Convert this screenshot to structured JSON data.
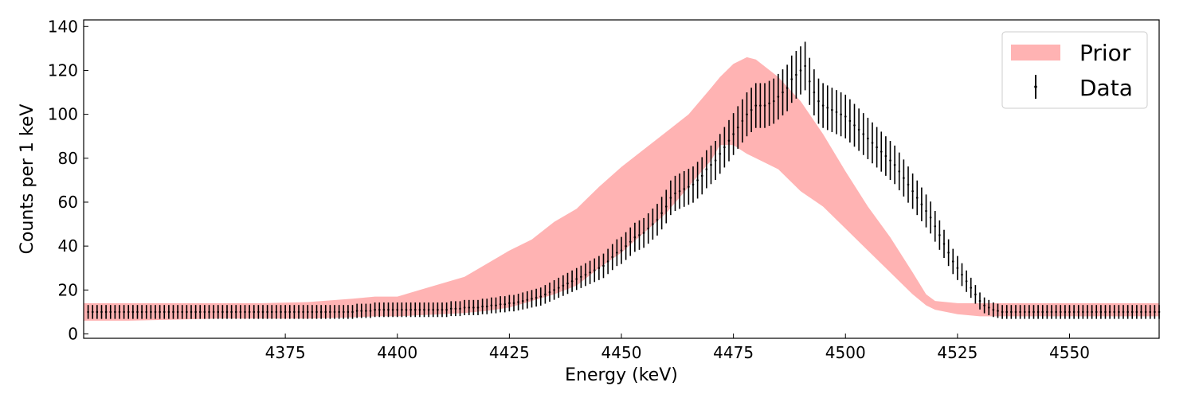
{
  "chart_data": {
    "type": "line",
    "title": "",
    "xlabel": "Energy (keV)",
    "ylabel": "Counts per 1 keV",
    "xlim": [
      4330,
      4570
    ],
    "ylim": [
      -2,
      143
    ],
    "xticks": [
      4375,
      4400,
      4425,
      4450,
      4475,
      4500,
      4525,
      4550
    ],
    "yticks": [
      0,
      20,
      40,
      60,
      80,
      100,
      120,
      140
    ],
    "grid": false,
    "legend": {
      "placement": "top-right",
      "entries": [
        {
          "label": "Prior",
          "kind": "band",
          "color": "#ffb3b3"
        },
        {
          "label": "Data",
          "kind": "errorbar",
          "color": "#000000"
        }
      ]
    },
    "series": [
      {
        "name": "Prior",
        "kind": "band",
        "color": "#ffb3b3",
        "x": [
          4330,
          4340,
          4350,
          4360,
          4370,
          4380,
          4390,
          4395,
          4400,
          4405,
          4410,
          4415,
          4420,
          4425,
          4430,
          4435,
          4440,
          4445,
          4450,
          4455,
          4460,
          4465,
          4470,
          4472,
          4475,
          4478,
          4480,
          4485,
          4490,
          4495,
          4500,
          4505,
          4510,
          4515,
          4518,
          4520,
          4525,
          4530,
          4540,
          4550,
          4560,
          4570
        ],
        "upper": [
          14,
          14,
          14,
          14,
          14,
          14.5,
          16,
          17,
          17,
          20,
          23,
          26,
          32,
          38,
          43,
          51,
          57,
          67,
          76,
          84,
          92,
          100,
          112,
          117,
          123,
          126,
          125,
          117,
          106,
          91,
          74,
          58,
          44,
          28,
          18,
          15,
          14,
          14,
          14,
          14,
          14,
          14
        ],
        "lower": [
          6,
          6,
          6.5,
          7,
          7,
          7,
          7.5,
          8,
          8,
          8.5,
          9,
          9.5,
          10.5,
          12,
          15,
          18,
          22,
          30,
          37,
          46,
          55,
          67,
          79,
          86,
          86,
          82,
          80,
          75,
          65,
          58,
          48,
          38,
          28,
          18,
          13,
          11,
          9,
          8,
          8,
          8,
          8,
          8
        ]
      },
      {
        "name": "Data",
        "kind": "errorbar",
        "color": "#000000",
        "x_start": 4331,
        "x_step": 1,
        "y": [
          10,
          10,
          10,
          10,
          10,
          10,
          10,
          10,
          10,
          10,
          10,
          10,
          10,
          10,
          10,
          10,
          10,
          10,
          10,
          10,
          10,
          10,
          10,
          10,
          10,
          10,
          10,
          10,
          10,
          10,
          10,
          10,
          10,
          10,
          10,
          10,
          10,
          10,
          10,
          10,
          10,
          10,
          10,
          10,
          10,
          10,
          10,
          10,
          10,
          10,
          10,
          10,
          10,
          10,
          10,
          10,
          10,
          10,
          10,
          10,
          10.5,
          10.5,
          10.5,
          10.5,
          11,
          11,
          11,
          11,
          11,
          11,
          11,
          11,
          11,
          11,
          11,
          11,
          11,
          11,
          11,
          11,
          11,
          11.5,
          11.5,
          11.5,
          12,
          12,
          12,
          12,
          12.5,
          12.5,
          13,
          13,
          13.5,
          13.5,
          14,
          14,
          14.5,
          15,
          15.5,
          16,
          16.5,
          17,
          18,
          19,
          20,
          21,
          22,
          23,
          24,
          25,
          26,
          27,
          28,
          29,
          30,
          31,
          33,
          35,
          37,
          38,
          40,
          42,
          44,
          45,
          46,
          48,
          50,
          52,
          55,
          58,
          62,
          64,
          65,
          66,
          67,
          68,
          70,
          72,
          75,
          77,
          79,
          82,
          85,
          88,
          91,
          94,
          97,
          100,
          102,
          104,
          104,
          104,
          105,
          106,
          108,
          110,
          112,
          116,
          118,
          120,
          122,
          115,
          110,
          106,
          104,
          103,
          102,
          101,
          100,
          99,
          97,
          95,
          93,
          91,
          89,
          87,
          85,
          83,
          81,
          79,
          77,
          74,
          71,
          68,
          65,
          62,
          59,
          56,
          53,
          49,
          45,
          41,
          37,
          33,
          30,
          27,
          24,
          21,
          18,
          15,
          13,
          12,
          11,
          10.5,
          10,
          10,
          10,
          10,
          10,
          10,
          10,
          10,
          10,
          10,
          10,
          10,
          10,
          10,
          10,
          10,
          10,
          10,
          10,
          10,
          10,
          10,
          10,
          10,
          10,
          10,
          10,
          10,
          10,
          10,
          10,
          10,
          10,
          10,
          10,
          10,
          10,
          10,
          10,
          10,
          10,
          10,
          10,
          10,
          10,
          10,
          10,
          10
        ]
      }
    ]
  }
}
